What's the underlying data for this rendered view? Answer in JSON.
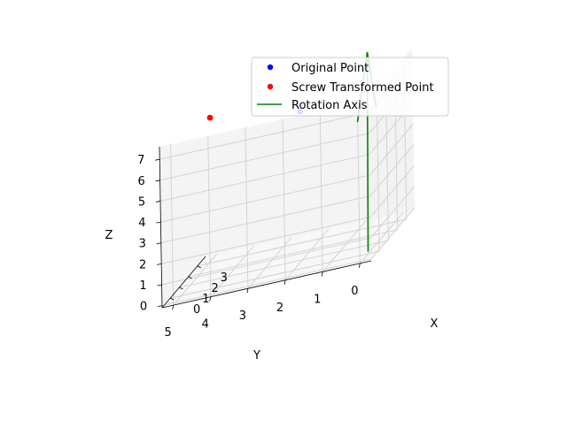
{
  "chart_data": {
    "type": "scatter",
    "projection": "3d",
    "xlabel": "X",
    "ylabel": "Y",
    "zlabel": "Z",
    "x_ticks": [
      "0",
      "1",
      "2",
      "3"
    ],
    "y_ticks": [
      "0",
      "1",
      "2",
      "3",
      "4",
      "5"
    ],
    "z_ticks": [
      "0",
      "1",
      "2",
      "3",
      "4",
      "5",
      "6",
      "7"
    ],
    "xlim": [
      -0.9,
      3.9
    ],
    "ylim": [
      -0.3,
      5.3
    ],
    "zlim": [
      -0.1,
      7.6
    ],
    "grid": true,
    "legend_position": "top-right",
    "colors": {
      "original": "#0000ff",
      "transformed": "#ff0000",
      "axis": "#008000"
    },
    "series": [
      {
        "name": "Original Point",
        "marker": "point",
        "points": [
          {
            "x": 1,
            "y": 2,
            "z": 7
          }
        ]
      },
      {
        "name": "Screw Transformed Point",
        "marker": "point",
        "points": [
          {
            "x": 2.6,
            "y": 4.8,
            "z": 7
          }
        ]
      },
      {
        "name": "Rotation Axis",
        "marker": "line",
        "points": [
          {
            "x": 0,
            "y": 0,
            "z": 0
          },
          {
            "x": 0,
            "y": 0,
            "z": 10
          }
        ]
      }
    ]
  }
}
